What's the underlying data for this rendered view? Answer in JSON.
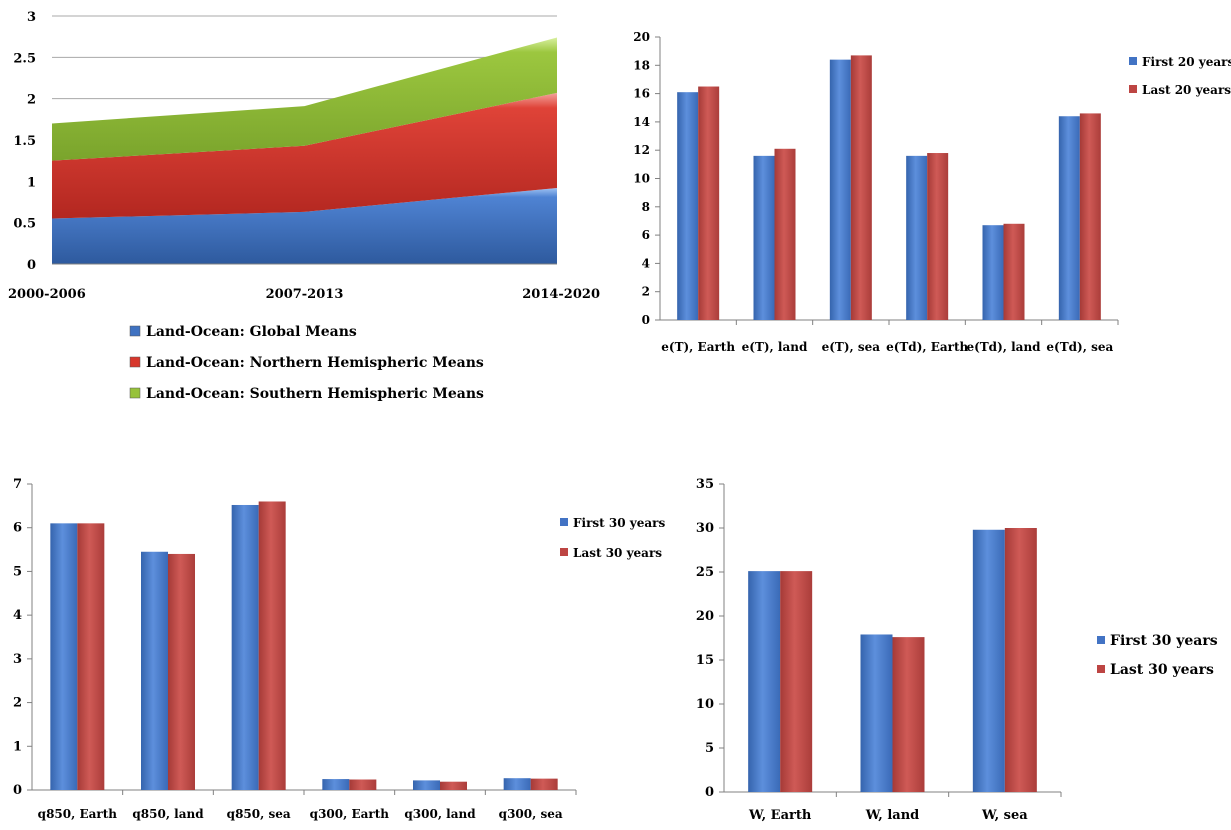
{
  "colors": {
    "global": "#3f72c1",
    "northern": "#d7372c",
    "southern": "#97c23b",
    "first": "#4273c4",
    "last": "#bd4543",
    "grid": "#a8a8a8",
    "axis": "#808080"
  },
  "chart_data": [
    {
      "type": "area",
      "stacked": true,
      "categories": [
        "2000-2006",
        "2007-2013",
        "2014-2020"
      ],
      "series": [
        {
          "name": "Land-Ocean: Global Means",
          "values": [
            0.55,
            0.63,
            0.92
          ]
        },
        {
          "name": "Land-Ocean: Northern Hemispheric Means",
          "values": [
            0.7,
            0.8,
            1.15
          ]
        },
        {
          "name": "Land-Ocean: Southern Hemispheric Means",
          "values": [
            0.45,
            0.48,
            0.67
          ]
        }
      ],
      "ylim": [
        0,
        3
      ],
      "yticks": [
        "0",
        "0.5",
        "1",
        "1.5",
        "2",
        "2.5",
        "3"
      ],
      "grid": true,
      "legend": "bottom"
    },
    {
      "type": "bar",
      "categories": [
        "e(T), Earth",
        "e(T), land",
        "e(T), sea",
        "e(Td), Earth",
        "e(Td), land",
        "e(Td), sea"
      ],
      "series": [
        {
          "name": "First 20 years",
          "values": [
            16.1,
            11.6,
            18.4,
            11.6,
            6.7,
            14.4
          ]
        },
        {
          "name": "Last 20 years",
          "values": [
            16.5,
            12.1,
            18.7,
            11.8,
            6.8,
            14.6
          ]
        }
      ],
      "ylim": [
        0,
        20
      ],
      "yticks": [
        "0",
        "2",
        "4",
        "6",
        "8",
        "10",
        "12",
        "14",
        "16",
        "18",
        "20"
      ],
      "grid": false,
      "legend": "right"
    },
    {
      "type": "bar",
      "categories": [
        "q850, Earth",
        "q850, land",
        "q850, sea",
        "q300, Earth",
        "q300, land",
        "q300, sea"
      ],
      "series": [
        {
          "name": "First 30 years",
          "values": [
            6.1,
            5.45,
            6.52,
            0.25,
            0.22,
            0.27
          ]
        },
        {
          "name": "Last 30 years",
          "values": [
            6.1,
            5.4,
            6.6,
            0.24,
            0.19,
            0.26
          ]
        }
      ],
      "ylim": [
        0,
        7
      ],
      "yticks": [
        "0",
        "1",
        "2",
        "3",
        "4",
        "5",
        "6",
        "7"
      ],
      "grid": false,
      "legend": "right"
    },
    {
      "type": "bar",
      "categories": [
        "W, Earth",
        "W, land",
        "W, sea"
      ],
      "series": [
        {
          "name": "First 30 years",
          "values": [
            25.1,
            17.9,
            29.8
          ]
        },
        {
          "name": "Last 30 years",
          "values": [
            25.1,
            17.6,
            30.0
          ]
        }
      ],
      "ylim": [
        0,
        35
      ],
      "yticks": [
        "0",
        "5",
        "10",
        "15",
        "20",
        "25",
        "30",
        "35"
      ],
      "grid": false,
      "legend": "right"
    }
  ]
}
